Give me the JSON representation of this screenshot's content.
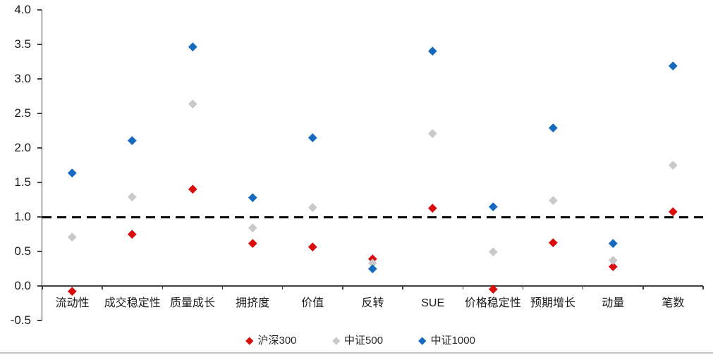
{
  "chart_data": {
    "type": "scatter",
    "marker": "diamond",
    "categories": [
      "流动性",
      "成交稳定性",
      "质量成长",
      "拥挤度",
      "价值",
      "反转",
      "SUE",
      "价格稳定性",
      "预期增长",
      "动量",
      "笔数"
    ],
    "series": [
      {
        "name": "沪深300",
        "color": "#d90b0b",
        "values": [
          -0.07,
          0.75,
          1.41,
          0.62,
          0.57,
          0.4,
          1.13,
          -0.04,
          0.63,
          0.28,
          1.08
        ]
      },
      {
        "name": "中证500",
        "color": "#c9c9c9",
        "values": [
          0.71,
          1.29,
          2.64,
          0.84,
          1.14,
          0.33,
          2.21,
          0.5,
          1.24,
          0.37,
          1.75
        ]
      },
      {
        "name": "中证1000",
        "color": "#1569be",
        "values": [
          1.64,
          2.11,
          3.47,
          1.28,
          2.15,
          0.25,
          3.41,
          1.15,
          2.29,
          0.62,
          3.19
        ]
      }
    ],
    "ylim": [
      -0.5,
      4.0
    ],
    "ytick_step": 0.5,
    "yticks": [
      "4.0",
      "3.5",
      "3.0",
      "2.5",
      "2.0",
      "1.5",
      "1.0",
      "0.5",
      "0.0",
      "-0.5"
    ],
    "reference_line": {
      "value": 1.0,
      "style": "dashed",
      "color": "#000000"
    },
    "grid": false,
    "legend_position": "bottom",
    "axis_color": "#404040"
  }
}
